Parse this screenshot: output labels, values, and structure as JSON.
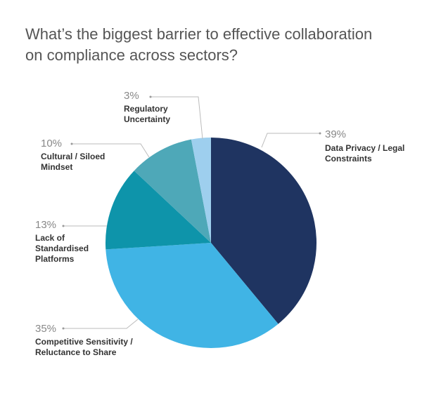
{
  "chart_data": {
    "type": "pie",
    "title": "What’s the biggest barrier to effective collaboration on compliance across sectors?",
    "categories": [
      "Data Privacy / Legal Constraints",
      "Competitive Sensitivity / Reluctance to Share",
      "Lack of Standardised Platforms",
      "Cultural / Siloed Mindset",
      "Regulatory Uncertainty"
    ],
    "values": [
      39,
      35,
      13,
      10,
      3
    ],
    "value_labels": [
      "39%",
      "35%",
      "13%",
      "10%",
      "3%"
    ],
    "colors": [
      "#1f3461",
      "#40b4e5",
      "#0e94aa",
      "#4ea8b8",
      "#9ecfee"
    ]
  }
}
